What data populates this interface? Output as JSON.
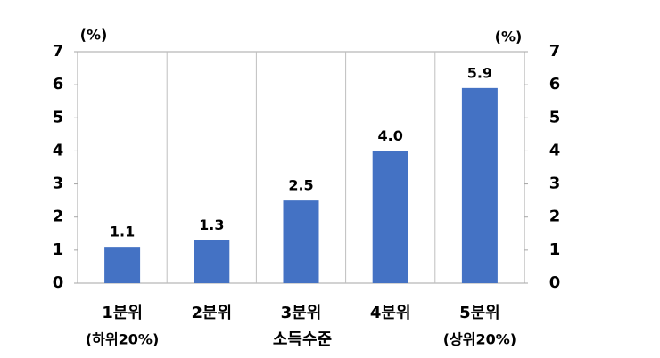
{
  "chart_data": {
    "type": "bar",
    "categories": [
      [
        "1분위",
        "(하위20%)"
      ],
      [
        "2분위"
      ],
      [
        "3분위"
      ],
      [
        "4분위"
      ],
      [
        "5분위",
        "(상위20%)"
      ]
    ],
    "x_label": "소득수준",
    "values": [
      1.1,
      1.3,
      2.5,
      4.0,
      5.9
    ],
    "value_labels": [
      "1.1",
      "1.3",
      "2.5",
      "4.0",
      "5.9"
    ],
    "color": "#4472c4",
    "y_unit": "(%)",
    "y2_unit": "(%)",
    "ylim": [
      0,
      7
    ],
    "yticks": [
      0,
      1,
      2,
      3,
      4,
      5,
      6,
      7
    ],
    "y2lim": [
      0,
      7
    ],
    "y2ticks": [
      0,
      1,
      2,
      3,
      4,
      5,
      6,
      7
    ]
  }
}
